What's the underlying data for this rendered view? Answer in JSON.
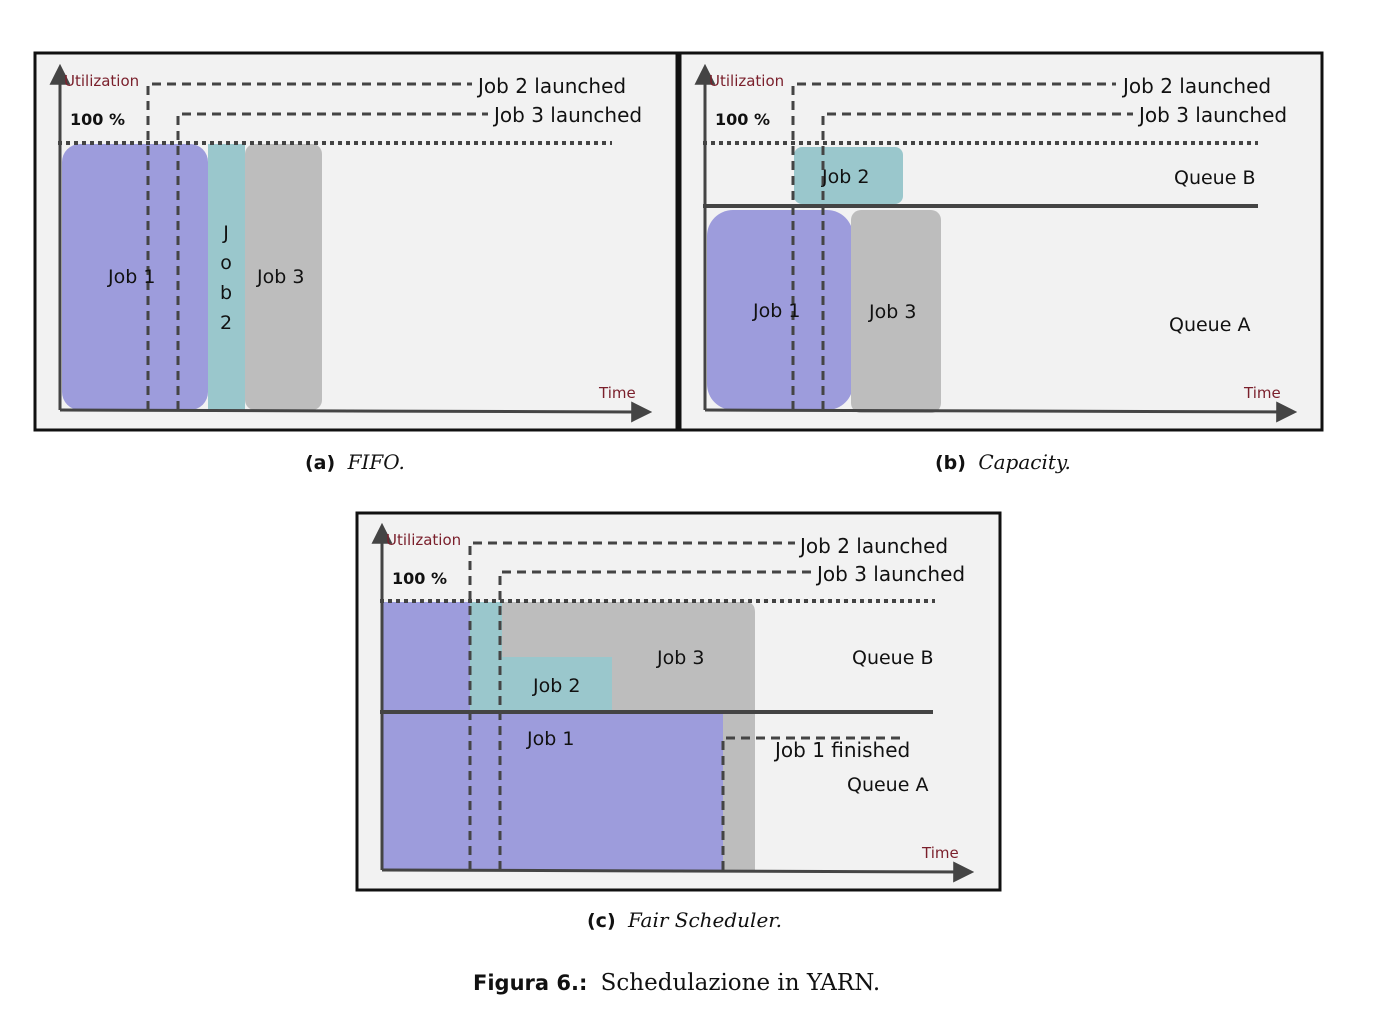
{
  "panels": {
    "fifo": {
      "axis_y": "Utilization",
      "axis_x": "Time",
      "pct": "100 %",
      "job2_launched": "Job 2 launched",
      "job3_launched": "Job 3 launched",
      "job1": "Job 1",
      "job2_vertical": [
        "J",
        "o",
        "b",
        "2"
      ],
      "job3": "Job 3"
    },
    "capacity": {
      "axis_y": "Utilization",
      "axis_x": "Time",
      "pct": "100 %",
      "job2_launched": "Job 2 launched",
      "job3_launched": "Job 3 launched",
      "job1": "Job 1",
      "job2": "Job 2",
      "job3": "Job 3",
      "queue_a": "Queue A",
      "queue_b": "Queue B"
    },
    "fair": {
      "axis_y": "Utilization",
      "axis_x": "Time",
      "pct": "100 %",
      "job2_launched": "Job 2 launched",
      "job3_launched": "Job 3 launched",
      "job1": "Job 1",
      "job2": "Job 2",
      "job3": "Job 3",
      "job1_finished": "Job 1 finished",
      "queue_a": "Queue A",
      "queue_b": "Queue B"
    }
  },
  "captions": {
    "a_tag": "(a)",
    "a_text": "FIFO.",
    "b_tag": "(b)",
    "b_text": "Capacity.",
    "c_tag": "(c)",
    "c_text": "Fair Scheduler."
  },
  "figure": {
    "label": "Figura 6.:",
    "title": "Schedulazione in YARN."
  },
  "colors": {
    "job1": "#9d9cdc",
    "job2": "#9ac7cc",
    "job3": "#bdbdbd",
    "panel_bg": "#f2f2f2",
    "axis": "#444444",
    "axis_label": "#7a1f2b"
  }
}
